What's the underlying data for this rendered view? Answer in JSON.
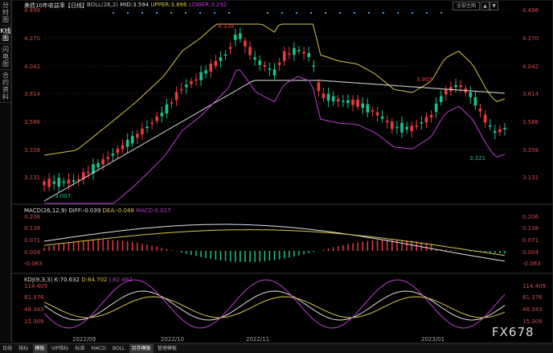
{
  "left_tabs": [
    {
      "label": "分时图",
      "active": false
    },
    {
      "label": "K线图",
      "active": true
    },
    {
      "label": "闪电图",
      "active": false
    },
    {
      "label": "合约资料",
      "active": false
    }
  ],
  "main_header": {
    "symbol": "美债10年收益率【日线】",
    "boll": "BOLL(26,2)",
    "mid": "MID:3.594",
    "upper": "UPPER:3.896",
    "lower": "LOWER:3.292"
  },
  "top_buttons": [
    "全部主图",
    "▲",
    "▼"
  ],
  "main_axis": [
    "4.498",
    "4.270",
    "4.042",
    "3.814",
    "3.586",
    "3.358",
    "3.131"
  ],
  "annotations": {
    "high": "4.338",
    "peak2": "3.905",
    "low1": "3.007",
    "low2": "3.321"
  },
  "macd_header": {
    "name": "MACD(26,12,9)",
    "diff": "DIFF:-0.039",
    "dea": "DEA:-0.048",
    "macd": "MACD:0.017"
  },
  "macd_axis": [
    "0.206",
    "0.138",
    "0.071",
    "0.004",
    "-0.063"
  ],
  "kdj_header": {
    "name": "KDJ(9,3,3)",
    "k": "K:70.632",
    "d": "D:64.702",
    "j": "J:82.492"
  },
  "kdj_axis": [
    "114.409",
    "81.376",
    "48.343",
    "15.309"
  ],
  "x_labels": [
    "2022/09",
    "2022/10",
    "2022/11",
    "2023/01"
  ],
  "bottom_tabs": [
    {
      "label": "日线",
      "active": false
    },
    {
      "label": "指标",
      "active": false
    },
    {
      "label": "模板",
      "active": true
    },
    {
      "label": "VIP指标",
      "active": false
    },
    {
      "label": "标准",
      "active": false
    },
    {
      "label": "MACD",
      "active": false
    },
    {
      "label": "BOLL",
      "active": false
    },
    {
      "label": "另存模板",
      "active": true
    },
    {
      "label": "管理模板",
      "active": false
    }
  ],
  "watermark": "FX678",
  "colors": {
    "up": "#e83b3b",
    "down": "#19c28f",
    "upper": "#d7c64a",
    "mid": "#e0e0e0",
    "lower": "#c23ad6",
    "axis_text": "#d24a4a"
  }
}
